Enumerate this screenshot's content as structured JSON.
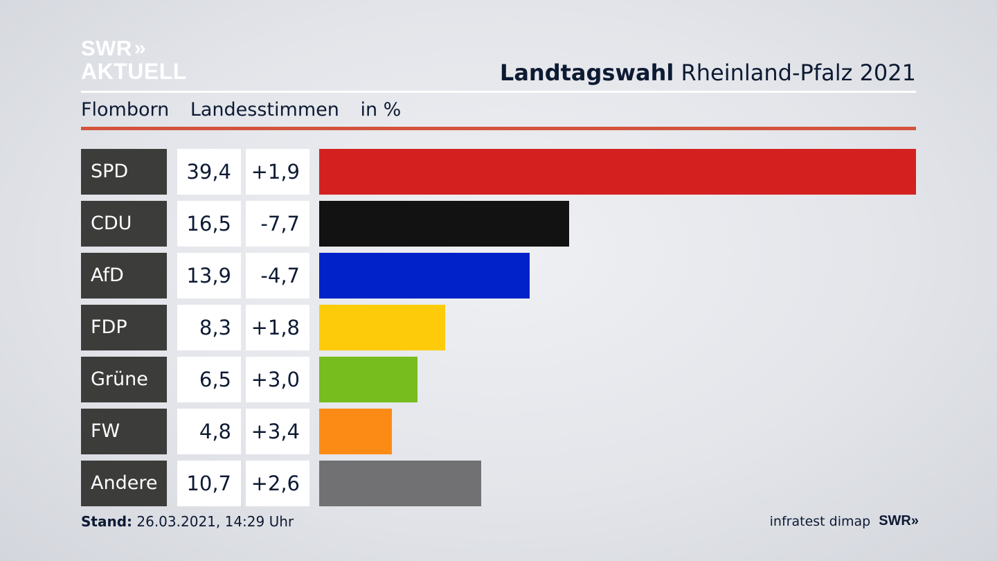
{
  "header": {
    "logo_line1": "SWR",
    "logo_line2": "AKTUELL",
    "title_bold": "Landtagswahl",
    "title_rest": "Rheinland-Pfalz 2021"
  },
  "subtitle": {
    "place": "Flomborn",
    "measure": "Landesstimmen",
    "unit": "in %"
  },
  "chart_data": {
    "type": "bar",
    "categories": [
      "SPD",
      "CDU",
      "AfD",
      "FDP",
      "Grüne",
      "FW",
      "Andere"
    ],
    "values": [
      39.4,
      16.5,
      13.9,
      8.3,
      6.5,
      4.8,
      10.7
    ],
    "value_labels": [
      "39,4",
      "16,5",
      "13,9",
      "8,3",
      "6,5",
      "4,8",
      "10,7"
    ],
    "changes": [
      1.9,
      -7.7,
      -4.7,
      1.8,
      3.0,
      3.4,
      2.6
    ],
    "change_labels": [
      "+1,9",
      "-7,7",
      "-4,7",
      "+1,8",
      "+3,0",
      "+3,4",
      "+2,6"
    ],
    "colors": [
      "#d52020",
      "#121212",
      "#0022c8",
      "#fdcb0a",
      "#76bd1d",
      "#fc8b15",
      "#717173"
    ],
    "orientation": "horizontal",
    "xlim": [
      0,
      39.4
    ]
  },
  "footer": {
    "stand_label": "Stand:",
    "stand_value": "26.03.2021, 14:29 Uhr",
    "source": "infratest dimap",
    "logo": "SWR"
  }
}
